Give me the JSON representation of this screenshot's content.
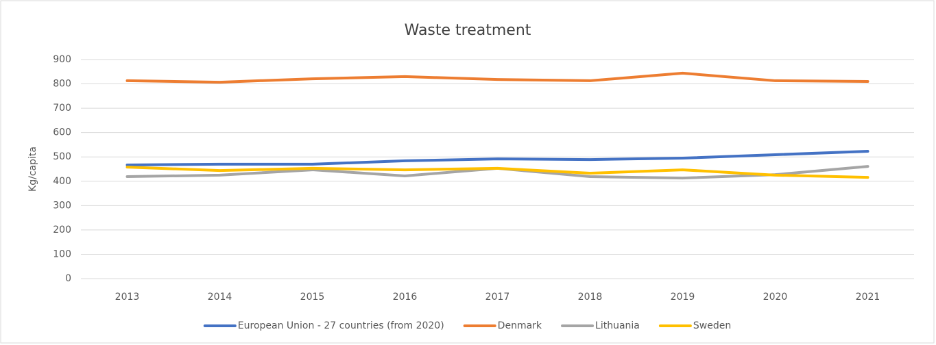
{
  "chart_data": {
    "type": "line",
    "title": "Waste treatment",
    "y_label": "Kg/capita",
    "categories": [
      "2013",
      "2014",
      "2015",
      "2016",
      "2017",
      "2018",
      "2019",
      "2020",
      "2021"
    ],
    "series": [
      {
        "name": "European Union - 27 countries (from 2020)",
        "color": "#4472c4",
        "values": [
          467,
          470,
          470,
          484,
          492,
          489,
          495,
          509,
          523
        ]
      },
      {
        "name": "Denmark",
        "color": "#ed7d31",
        "values": [
          813,
          807,
          821,
          830,
          818,
          813,
          844,
          813,
          810
        ]
      },
      {
        "name": "Lithuania",
        "color": "#a5a5a5",
        "values": [
          419,
          425,
          447,
          422,
          453,
          419,
          413,
          427,
          461
        ]
      },
      {
        "name": "Sweden",
        "color": "#ffc000",
        "values": [
          458,
          444,
          453,
          447,
          453,
          433,
          447,
          425,
          416
        ]
      }
    ],
    "ylim": [
      0,
      900
    ],
    "yticks": [
      0,
      100,
      200,
      300,
      400,
      500,
      600,
      700,
      800,
      900
    ],
    "grid": true,
    "legend": "bottom"
  }
}
